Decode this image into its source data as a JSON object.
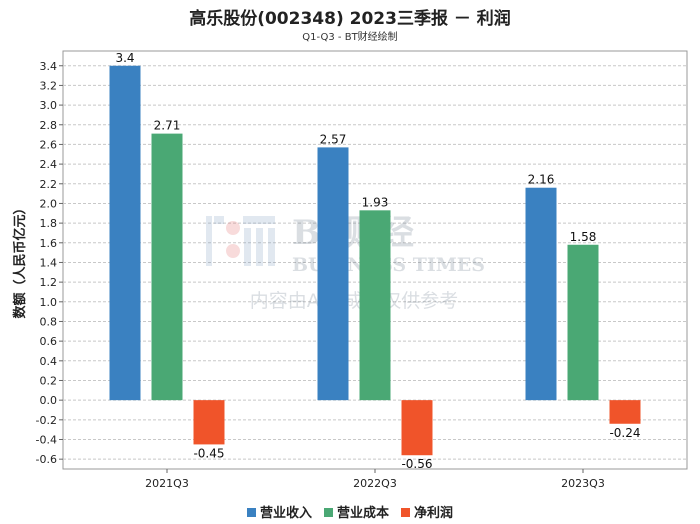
{
  "chart_data": {
    "type": "bar",
    "title": "高乐股份(002348) 2023三季报 － 利润",
    "subtitle": "Q1-Q3 - BT财经绘制",
    "ylabel": "数额（人民币亿元）",
    "xlabel": "",
    "categories": [
      "2021Q3",
      "2022Q3",
      "2023Q3"
    ],
    "series": [
      {
        "name": "营业收入",
        "color": "#3a81c1",
        "values": [
          3.4,
          2.57,
          2.16
        ]
      },
      {
        "name": "营业成本",
        "color": "#4aa874",
        "values": [
          2.71,
          1.93,
          1.58
        ]
      },
      {
        "name": "净利润",
        "color": "#f0542a",
        "values": [
          -0.45,
          -0.56,
          -0.24
        ]
      }
    ],
    "value_labels": [
      [
        "3.4",
        "2.57",
        "2.16"
      ],
      [
        "2.71",
        "1.93",
        "1.58"
      ],
      [
        "-0.45",
        "-0.56",
        "-0.24"
      ]
    ],
    "ylim": [
      -0.7,
      3.55
    ],
    "yticks": [
      "-0.6",
      "-0.4",
      "-0.2",
      "0.0",
      "0.2",
      "0.4",
      "0.6",
      "0.8",
      "1.0",
      "1.2",
      "1.4",
      "1.6",
      "1.8",
      "2.0",
      "2.2",
      "2.4",
      "2.6",
      "2.8",
      "3.0",
      "3.2",
      "3.4"
    ],
    "grid": true,
    "legend_position": "bottom"
  },
  "watermark": {
    "logo_text": "BT财经",
    "brand": "BUSINESS TIMES",
    "note": "内容由AI生成，仅供参考"
  }
}
